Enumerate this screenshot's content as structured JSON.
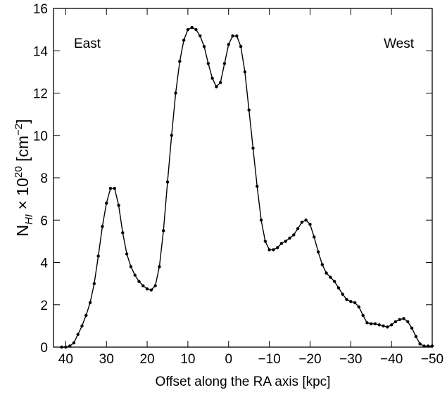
{
  "chart_data": {
    "type": "line",
    "xlabel": "Offset along the RA axis [kpc]",
    "ylabel": [
      "N",
      "HI",
      " × 10",
      "20",
      " [cm",
      "−2",
      "]"
    ],
    "annotations": [
      "East",
      "West"
    ],
    "x": [
      41,
      40,
      39,
      38,
      37,
      36,
      35,
      34,
      33,
      32,
      31,
      30,
      29,
      28,
      27,
      26,
      25,
      24,
      23,
      22,
      21,
      20,
      19,
      18,
      17,
      16,
      15,
      14,
      13,
      12,
      11,
      10,
      9,
      8,
      7,
      6,
      5,
      4,
      3,
      2,
      1,
      0,
      -1,
      -2,
      -3,
      -4,
      -5,
      -6,
      -7,
      -8,
      -9,
      -10,
      -11,
      -12,
      -13,
      -14,
      -15,
      -16,
      -17,
      -18,
      -19,
      -20,
      -21,
      -22,
      -23,
      -24,
      -25,
      -26,
      -27,
      -28,
      -29,
      -30,
      -31,
      -32,
      -33,
      -34,
      -35,
      -36,
      -37,
      -38,
      -39,
      -40,
      -41,
      -42,
      -43,
      -44,
      -45,
      -46,
      -47,
      -48,
      -49,
      -50
    ],
    "series": [
      {
        "color": "#000000",
        "values": [
          0,
          0,
          0.05,
          0.2,
          0.6,
          1.0,
          1.5,
          2.1,
          3.0,
          4.3,
          5.7,
          6.8,
          7.5,
          7.5,
          6.7,
          5.4,
          4.4,
          3.8,
          3.4,
          3.1,
          2.9,
          2.75,
          2.7,
          2.9,
          3.8,
          5.5,
          7.8,
          10.0,
          12.0,
          13.5,
          14.5,
          15.0,
          15.1,
          15.0,
          14.7,
          14.2,
          13.4,
          12.7,
          12.3,
          12.5,
          13.4,
          14.3,
          14.7,
          14.7,
          14.2,
          13.0,
          11.2,
          9.4,
          7.6,
          6.0,
          5.0,
          4.6,
          4.6,
          4.7,
          4.9,
          5.0,
          5.15,
          5.3,
          5.6,
          5.9,
          6.0,
          5.8,
          5.2,
          4.5,
          3.9,
          3.5,
          3.3,
          3.1,
          2.8,
          2.5,
          2.25,
          2.15,
          2.1,
          1.9,
          1.5,
          1.15,
          1.1,
          1.1,
          1.05,
          1.0,
          0.95,
          1.05,
          1.2,
          1.3,
          1.35,
          1.2,
          0.9,
          0.5,
          0.15,
          0.05,
          0.05,
          0.05
        ]
      }
    ],
    "xlim": [
      43,
      -50
    ],
    "ylim": [
      0,
      16
    ],
    "xticks": [
      40,
      30,
      20,
      10,
      0,
      {
        "value": -10,
        "label": "−10"
      },
      {
        "value": -20,
        "label": "−20"
      },
      {
        "value": -30,
        "label": "−30"
      },
      {
        "value": -40,
        "label": "−40"
      },
      {
        "value": -50,
        "label": "−50"
      }
    ],
    "yticks": [
      0,
      2,
      4,
      6,
      8,
      10,
      12,
      14,
      16
    ]
  }
}
